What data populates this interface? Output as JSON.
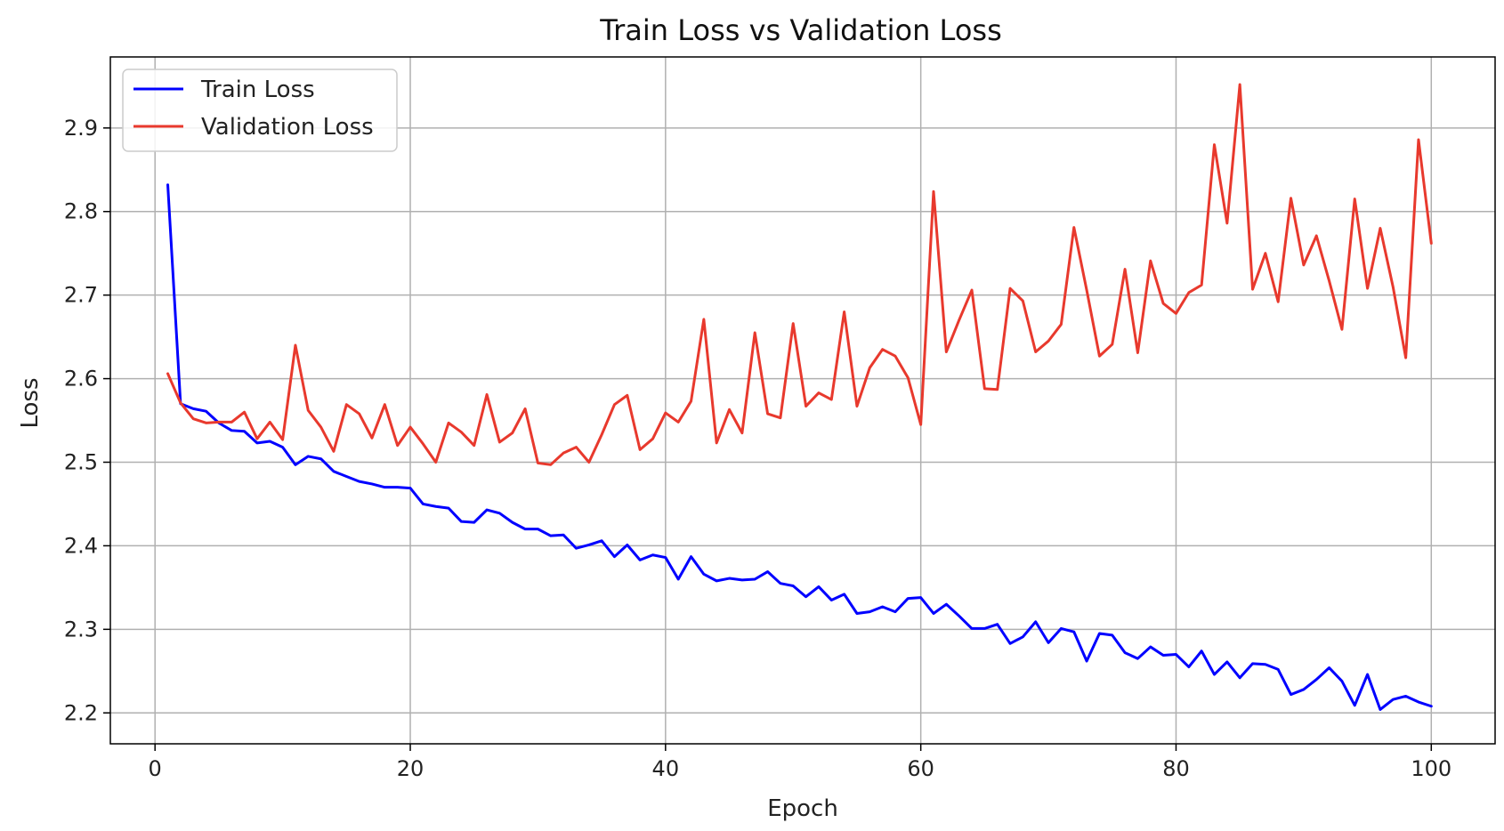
{
  "chart_data": {
    "type": "line",
    "title": "Train Loss vs Validation Loss",
    "xlabel": "Epoch",
    "ylabel": "Loss",
    "xlim": [
      -3.5,
      105
    ],
    "ylim": [
      2.163,
      2.985
    ],
    "xticks": [
      0,
      20,
      40,
      60,
      80,
      100
    ],
    "yticks": [
      2.2,
      2.3,
      2.4,
      2.5,
      2.6,
      2.7,
      2.8,
      2.9
    ],
    "grid": true,
    "legend_position": "top-left",
    "x": [
      1,
      2,
      3,
      4,
      5,
      6,
      7,
      8,
      9,
      10,
      11,
      12,
      13,
      14,
      15,
      16,
      17,
      18,
      19,
      20,
      21,
      22,
      23,
      24,
      25,
      26,
      27,
      28,
      29,
      30,
      31,
      32,
      33,
      34,
      35,
      36,
      37,
      38,
      39,
      40,
      41,
      42,
      43,
      44,
      45,
      46,
      47,
      48,
      49,
      50,
      51,
      52,
      53,
      54,
      55,
      56,
      57,
      58,
      59,
      60,
      61,
      62,
      63,
      64,
      65,
      66,
      67,
      68,
      69,
      70,
      71,
      72,
      73,
      74,
      75,
      76,
      77,
      78,
      79,
      80,
      81,
      82,
      83,
      84,
      85,
      86,
      87,
      88,
      89,
      90,
      91,
      92,
      93,
      94,
      95,
      96,
      97,
      98,
      99,
      100
    ],
    "series": [
      {
        "name": "Train Loss",
        "color": "#0000ff",
        "values": [
          2.832,
          2.57,
          2.564,
          2.561,
          2.547,
          2.538,
          2.537,
          2.523,
          2.525,
          2.518,
          2.497,
          2.507,
          2.504,
          2.489,
          2.483,
          2.477,
          2.474,
          2.47,
          2.47,
          2.469,
          2.45,
          2.447,
          2.445,
          2.429,
          2.428,
          2.443,
          2.439,
          2.428,
          2.42,
          2.42,
          2.412,
          2.413,
          2.397,
          2.401,
          2.406,
          2.387,
          2.401,
          2.383,
          2.389,
          2.386,
          2.36,
          2.387,
          2.366,
          2.358,
          2.361,
          2.359,
          2.36,
          2.369,
          2.355,
          2.352,
          2.339,
          2.351,
          2.335,
          2.342,
          2.319,
          2.321,
          2.327,
          2.321,
          2.337,
          2.338,
          2.319,
          2.33,
          2.316,
          2.301,
          2.301,
          2.306,
          2.283,
          2.291,
          2.309,
          2.284,
          2.301,
          2.297,
          2.262,
          2.295,
          2.293,
          2.272,
          2.265,
          2.279,
          2.269,
          2.27,
          2.255,
          2.274,
          2.246,
          2.261,
          2.242,
          2.259,
          2.258,
          2.252,
          2.222,
          2.228,
          2.24,
          2.254,
          2.238,
          2.209,
          2.246,
          2.204,
          2.216,
          2.22,
          2.213,
          2.208
        ]
      },
      {
        "name": "Validation Loss",
        "color": "#e8392d",
        "values": [
          2.606,
          2.571,
          2.552,
          2.547,
          2.548,
          2.548,
          2.56,
          2.528,
          2.548,
          2.527,
          2.64,
          2.562,
          2.542,
          2.513,
          2.569,
          2.558,
          2.529,
          2.569,
          2.52,
          2.542,
          2.522,
          2.5,
          2.547,
          2.536,
          2.52,
          2.581,
          2.524,
          2.535,
          2.564,
          2.499,
          2.497,
          2.511,
          2.518,
          2.5,
          2.533,
          2.569,
          2.58,
          2.515,
          2.528,
          2.559,
          2.548,
          2.573,
          2.671,
          2.523,
          2.563,
          2.535,
          2.655,
          2.558,
          2.553,
          2.666,
          2.567,
          2.583,
          2.575,
          2.68,
          2.567,
          2.613,
          2.635,
          2.627,
          2.601,
          2.545,
          2.824,
          2.632,
          2.67,
          2.706,
          2.588,
          2.587,
          2.708,
          2.693,
          2.632,
          2.645,
          2.665,
          2.781,
          2.706,
          2.627,
          2.641,
          2.731,
          2.631,
          2.741,
          2.69,
          2.678,
          2.703,
          2.712,
          2.88,
          2.786,
          2.952,
          2.707,
          2.75,
          2.692,
          2.816,
          2.736,
          2.771,
          2.717,
          2.659,
          2.815,
          2.708,
          2.78,
          2.71,
          2.625,
          2.886,
          2.762
        ]
      }
    ]
  }
}
